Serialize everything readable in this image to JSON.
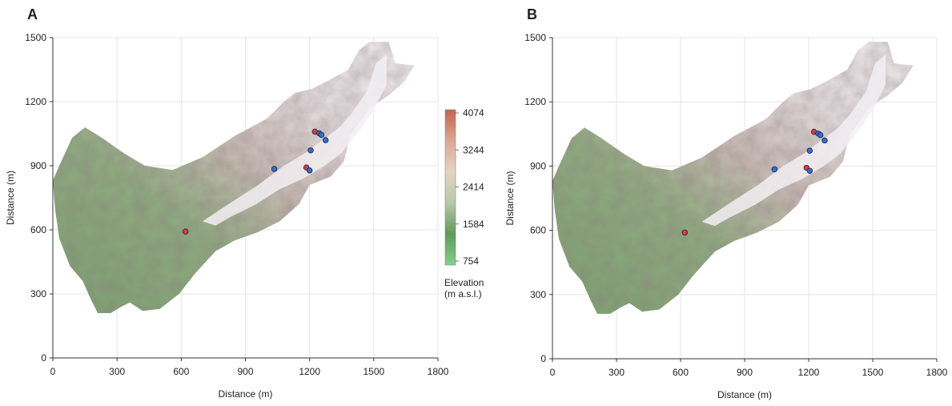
{
  "panels": [
    {
      "label": "A",
      "show_colorbar": true,
      "chart_data": {
        "type": "scatter",
        "xlabel": "Distance (m)",
        "ylabel": "Distance (m)",
        "xlim": [
          0,
          1800
        ],
        "ylim": [
          0,
          1500
        ],
        "xticks": [
          0,
          300,
          600,
          900,
          1200,
          1500,
          1800
        ],
        "yticks": [
          0,
          300,
          600,
          900,
          1200,
          1500
        ],
        "grid": true,
        "background": "shaded-relief elevation map of a mountain valley",
        "colors": {
          "red": "#e0393a",
          "blue": "#2f6fd6"
        },
        "series": [
          {
            "color": "red",
            "points": [
              [
                1225,
                1060
              ],
              [
                1185,
                892
              ],
              [
                620,
                592
              ]
            ]
          },
          {
            "color": "blue",
            "points": [
              [
                1245,
                1052
              ],
              [
                1255,
                1045
              ],
              [
                1275,
                1020
              ],
              [
                1205,
                972
              ],
              [
                1035,
                885
              ],
              [
                1200,
                878
              ]
            ]
          }
        ]
      }
    },
    {
      "label": "B",
      "show_colorbar": false,
      "chart_data": {
        "type": "scatter",
        "xlabel": "Distance (m)",
        "ylabel": "Distance (m)",
        "xlim": [
          0,
          1800
        ],
        "ylim": [
          0,
          1500
        ],
        "xticks": [
          0,
          300,
          600,
          900,
          1200,
          1500,
          1800
        ],
        "yticks": [
          0,
          300,
          600,
          900,
          1200,
          1500
        ],
        "grid": true,
        "background": "shaded-relief elevation map of a mountain valley",
        "colors": {
          "red": "#e0393a",
          "blue": "#2f6fd6"
        },
        "series": [
          {
            "color": "red",
            "points": [
              [
                1225,
                1060
              ],
              [
                1190,
                892
              ],
              [
                620,
                590
              ]
            ]
          },
          {
            "color": "blue",
            "points": [
              [
                1245,
                1052
              ],
              [
                1255,
                1045
              ],
              [
                1275,
                1020
              ],
              [
                1205,
                972
              ],
              [
                1040,
                885
              ],
              [
                1205,
                878
              ]
            ]
          }
        ]
      }
    }
  ],
  "colorbar": {
    "title_line1": "Elevation",
    "title_line2": "(m a.s.l.)",
    "ticks": [
      4074,
      3244,
      2414,
      1584,
      754
    ],
    "ticks_text": [
      "4074",
      "3244",
      "2414",
      "1584",
      "754"
    ],
    "gradient": [
      "#c8614a",
      "#d9a991",
      "#e6d3c4",
      "#b7c9a8",
      "#5f9a58",
      "#84cf8c"
    ]
  }
}
